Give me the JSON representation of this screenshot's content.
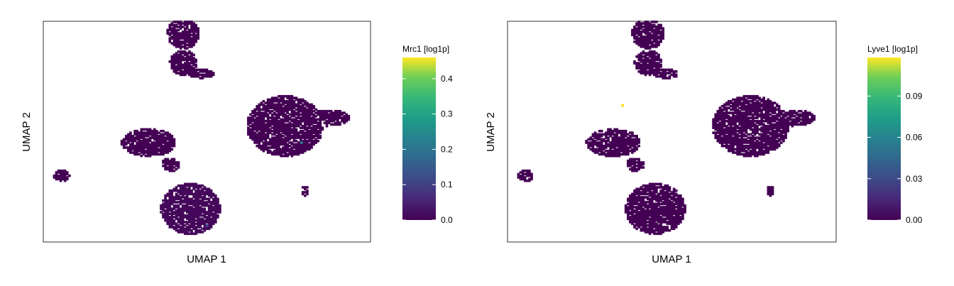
{
  "chart_data": [
    {
      "type": "scatter",
      "subtype": "hexbin-umap",
      "xlabel": "UMAP 1",
      "ylabel": "UMAP 2",
      "axis_ticks_shown": false,
      "grid": false,
      "colormap": "viridis",
      "background_color": "#ffffff",
      "legend": {
        "title": "Mrc1 [log1p]",
        "placement": "right",
        "min": 0.0,
        "max": 0.46,
        "ticks": [
          0.0,
          0.1,
          0.2,
          0.3,
          0.4
        ],
        "tick_labels": [
          "0.0",
          "0.1",
          "0.2",
          "0.3",
          "0.4"
        ]
      },
      "clusters": [
        {
          "name": "top",
          "cx": -1.2,
          "cy": 8.0,
          "value": 0.0
        },
        {
          "name": "left-small",
          "cx": -8.0,
          "cy": -1.2,
          "value": 0.0
        },
        {
          "name": "center-left",
          "cx": -3.0,
          "cy": 1.2,
          "value": 0.0
        },
        {
          "name": "bottom-center",
          "cx": -1.0,
          "cy": -3.6,
          "value": 0.01
        },
        {
          "name": "right",
          "cx": 4.5,
          "cy": 2.6,
          "value": 0.0
        }
      ],
      "highlight_points": [
        {
          "x": 5.2,
          "y": 1.2,
          "value": 0.2
        },
        {
          "x": 0.0,
          "y": -4.8,
          "value": 0.12
        }
      ]
    },
    {
      "type": "scatter",
      "subtype": "hexbin-umap",
      "xlabel": "UMAP 1",
      "ylabel": "UMAP 2",
      "axis_ticks_shown": false,
      "grid": false,
      "colormap": "viridis",
      "background_color": "#ffffff",
      "legend": {
        "title": "Lyve1 [log1p]",
        "placement": "right",
        "min": 0.0,
        "max": 0.118,
        "ticks": [
          0.0,
          0.03,
          0.06,
          0.09
        ],
        "tick_labels": [
          "0.00",
          "0.03",
          "0.06",
          "0.09"
        ]
      },
      "clusters": [
        {
          "name": "top",
          "cx": -1.2,
          "cy": 8.0,
          "value": 0.0
        },
        {
          "name": "left-small",
          "cx": -8.0,
          "cy": -1.2,
          "value": 0.0
        },
        {
          "name": "center-left",
          "cx": -3.0,
          "cy": 1.2,
          "value": 0.0
        },
        {
          "name": "bottom-center",
          "cx": -1.0,
          "cy": -3.6,
          "value": 0.0
        },
        {
          "name": "right",
          "cx": 4.5,
          "cy": 2.6,
          "value": 0.0
        }
      ],
      "highlight_points": [
        {
          "x": -2.7,
          "y": 3.9,
          "value": 0.118
        }
      ]
    }
  ]
}
